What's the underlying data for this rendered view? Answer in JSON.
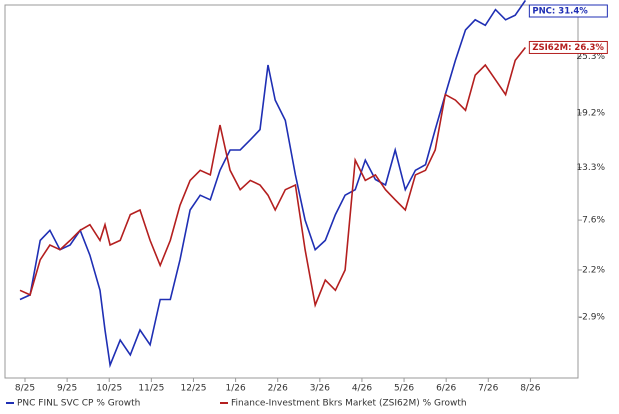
{
  "chart_data": {
    "type": "line",
    "x": [
      -0.12,
      0.12,
      0.36,
      0.59,
      0.83,
      1.07,
      1.31,
      1.54,
      1.78,
      1.9,
      2.02,
      2.26,
      2.5,
      2.73,
      2.97,
      3.21,
      3.45,
      3.68,
      3.92,
      4.16,
      4.4,
      4.63,
      4.87,
      5.11,
      5.35,
      5.58,
      5.77,
      5.94,
      6.18,
      6.42,
      6.65,
      6.89,
      7.13,
      7.37,
      7.6,
      7.84,
      8.08,
      8.32,
      8.56,
      8.79,
      9.03,
      9.27,
      9.51,
      9.74,
      9.98,
      10.22,
      10.46,
      10.69,
      10.93,
      11.17,
      11.41,
      11.64,
      11.88
    ],
    "series": [
      {
        "name": "PNC FINL SVC CP % Growth",
        "color": "#1f2fb4",
        "end_label": "PNC: 31.4%",
        "values": [
          -1.0,
          -0.5,
          5.4,
          6.5,
          4.4,
          4.9,
          6.5,
          3.8,
          0.0,
          -4.3,
          -8.1,
          -5.4,
          -7.0,
          -4.3,
          -5.9,
          -1.0,
          -1.0,
          3.3,
          8.7,
          10.3,
          9.8,
          13.0,
          15.2,
          15.2,
          16.3,
          17.4,
          24.4,
          20.6,
          18.4,
          12.5,
          7.6,
          4.4,
          5.4,
          8.2,
          10.3,
          10.9,
          14.1,
          12.0,
          11.4,
          15.2,
          10.9,
          13.0,
          13.6,
          17.4,
          21.2,
          24.9,
          28.2,
          29.3,
          28.7,
          30.4,
          29.3,
          29.8,
          31.4
        ]
      },
      {
        "name": "Finance-Investment Bkrs Market (ZSI62M) % Growth",
        "color": "#b41f1f",
        "end_label": "ZSI62M: 26.3%",
        "values": [
          0.0,
          -0.5,
          3.3,
          4.9,
          4.4,
          5.4,
          6.5,
          7.1,
          5.4,
          7.1,
          4.9,
          5.4,
          8.2,
          8.7,
          5.4,
          2.7,
          5.4,
          9.2,
          11.9,
          13.0,
          12.5,
          17.9,
          13.0,
          10.9,
          11.9,
          11.4,
          10.3,
          8.7,
          10.9,
          11.4,
          4.4,
          -1.6,
          1.1,
          0.0,
          2.2,
          14.1,
          11.9,
          12.5,
          10.9,
          9.8,
          8.7,
          12.5,
          13.0,
          15.2,
          21.2,
          20.6,
          19.5,
          23.3,
          24.4,
          22.8,
          21.2,
          24.9,
          26.3
        ]
      }
    ],
    "xlim": [
      -0.475,
      13.13
    ],
    "xticks": [
      {
        "value": 0,
        "label": "8/25"
      },
      {
        "value": 1,
        "label": "9/25"
      },
      {
        "value": 2,
        "label": "10/25"
      },
      {
        "value": 3,
        "label": "11/25"
      },
      {
        "value": 4,
        "label": "12/25"
      },
      {
        "value": 5,
        "label": "1/26"
      },
      {
        "value": 6,
        "label": "2/26"
      },
      {
        "value": 7,
        "label": "3/26"
      },
      {
        "value": 8,
        "label": "4/26"
      },
      {
        "value": 9,
        "label": "5/26"
      },
      {
        "value": 10,
        "label": "6/26"
      },
      {
        "value": 11,
        "label": "7/26"
      },
      {
        "value": 12,
        "label": "8/26"
      }
    ],
    "ylim": [
      -9.5,
      30.9
    ],
    "yticks": [
      {
        "value": -2.9,
        "label": "-2.9%"
      },
      {
        "value": 2.2,
        "label": "2.2%"
      },
      {
        "value": 7.6,
        "label": "7.6%"
      },
      {
        "value": 13.3,
        "label": "13.3%"
      },
      {
        "value": 19.2,
        "label": "19.2%"
      },
      {
        "value": 25.3,
        "label": "25.3%"
      }
    ]
  }
}
